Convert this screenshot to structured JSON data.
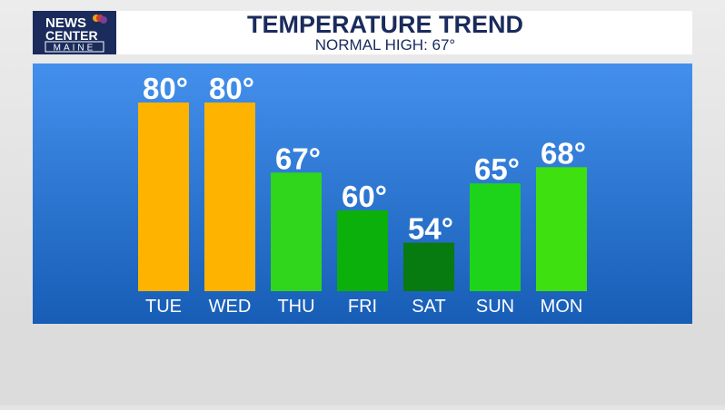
{
  "logo": {
    "line1": "NEWS",
    "line2": "CENTER",
    "line3": "MAINE"
  },
  "chart_data": {
    "type": "bar",
    "title": "TEMPERATURE TREND",
    "subtitle": "NORMAL HIGH: 67°",
    "categories": [
      "TUE",
      "WED",
      "THU",
      "FRI",
      "SAT",
      "SUN",
      "MON"
    ],
    "values": [
      80,
      80,
      67,
      60,
      54,
      65,
      68
    ],
    "value_labels": [
      "80°",
      "80°",
      "67°",
      "60°",
      "54°",
      "65°",
      "68°"
    ],
    "colors": [
      "#fdb300",
      "#fdb300",
      "#2fd61c",
      "#0bb00b",
      "#077a10",
      "#1ed41b",
      "#3fe010"
    ],
    "ylim": [
      45,
      80
    ]
  }
}
